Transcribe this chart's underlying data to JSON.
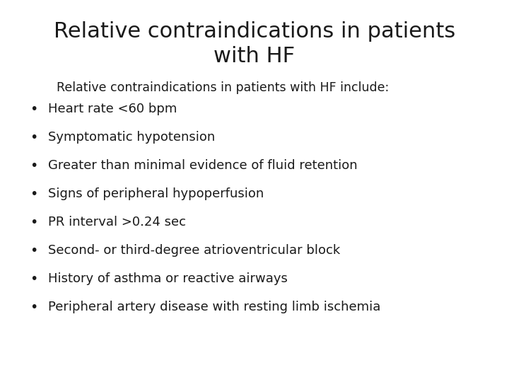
{
  "title_line1": "Relative contraindications in patients",
  "title_line2": "with HF",
  "subtitle": "Relative contraindications in patients with HF include:",
  "bullet_items": [
    "Heart rate <60 bpm",
    "Symptomatic hypotension",
    "Greater than minimal evidence of fluid retention",
    "Signs of peripheral hypoperfusion",
    "PR interval >0.24 sec",
    "Second- or third-degree atrioventricular block",
    "History of asthma or reactive airways",
    "Peripheral artery disease with resting limb ischemia"
  ],
  "background_color": "#ffffff",
  "text_color": "#1a1a1a",
  "title_fontsize": 22,
  "subtitle_fontsize": 12.5,
  "bullet_fontsize": 13,
  "font_family": "DejaVu Sans"
}
